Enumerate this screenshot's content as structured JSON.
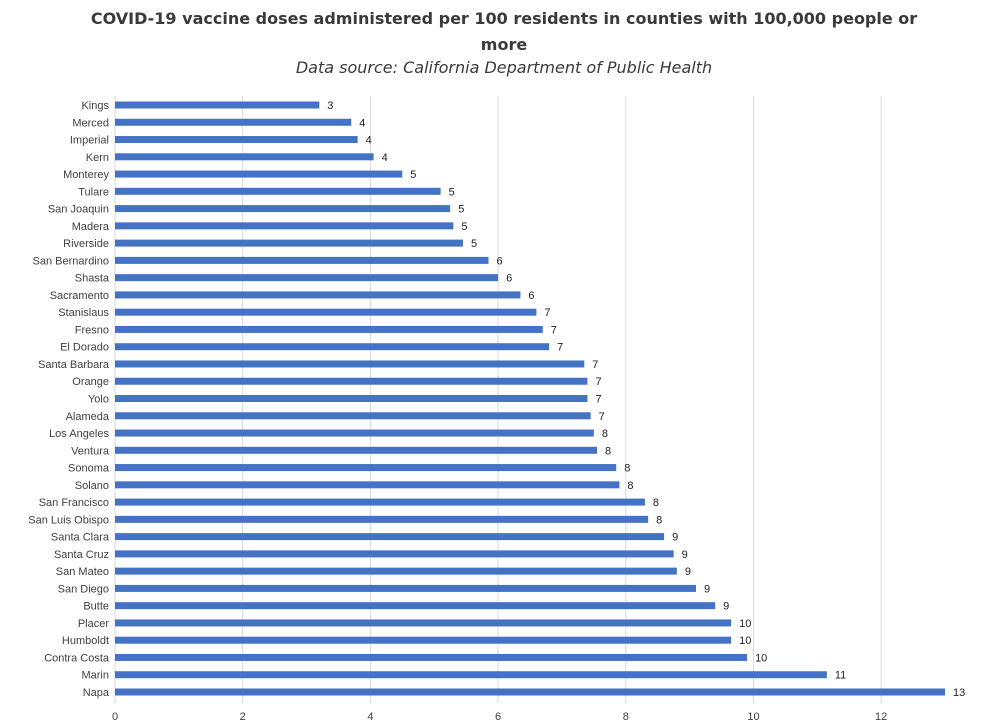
{
  "chart_data": {
    "type": "bar",
    "orientation": "horizontal",
    "title_line1": "COVID-19 vaccine doses administered per 100 residents in counties with 100,000 people or",
    "title_line2": "more",
    "subtitle": "Data source: California Department of Public Health",
    "categories": [
      "Kings",
      "Merced",
      "Imperial",
      "Kern",
      "Monterey",
      "Tulare",
      "San Joaquin",
      "Madera",
      "Riverside",
      "San Bernardino",
      "Shasta",
      "Sacramento",
      "Stanislaus",
      "Fresno",
      "El Dorado",
      "Santa Barbara",
      "Orange",
      "Yolo",
      "Alameda",
      "Los Angeles",
      "Ventura",
      "Sonoma",
      "Solano",
      "San Francisco",
      "San Luis Obispo",
      "Santa Clara",
      "Santa Cruz",
      "San Mateo",
      "San Diego",
      "Butte",
      "Placer",
      "Humboldt",
      "Contra Costa",
      "Marin",
      "Napa"
    ],
    "values": [
      3.2,
      3.7,
      3.8,
      4.05,
      4.5,
      5.1,
      5.25,
      5.3,
      5.45,
      5.85,
      6.0,
      6.35,
      6.6,
      6.7,
      6.8,
      7.35,
      7.4,
      7.4,
      7.45,
      7.5,
      7.55,
      7.85,
      7.9,
      8.3,
      8.35,
      8.6,
      8.75,
      8.8,
      9.1,
      9.4,
      9.65,
      9.65,
      9.9,
      11.15,
      13.0
    ],
    "value_labels": [
      "3",
      "4",
      "4",
      "4",
      "5",
      "5",
      "5",
      "5",
      "5",
      "6",
      "6",
      "6",
      "7",
      "7",
      "7",
      "7",
      "7",
      "7",
      "7",
      "8",
      "8",
      "8",
      "8",
      "8",
      "8",
      "9",
      "9",
      "9",
      "9",
      "9",
      "10",
      "10",
      "10",
      "11",
      "13"
    ],
    "xlim": [
      0,
      13
    ],
    "xticks": [
      "0",
      "2",
      "4",
      "6",
      "8",
      "10",
      "12"
    ],
    "bar_color": "#4472c4",
    "grid": true
  }
}
